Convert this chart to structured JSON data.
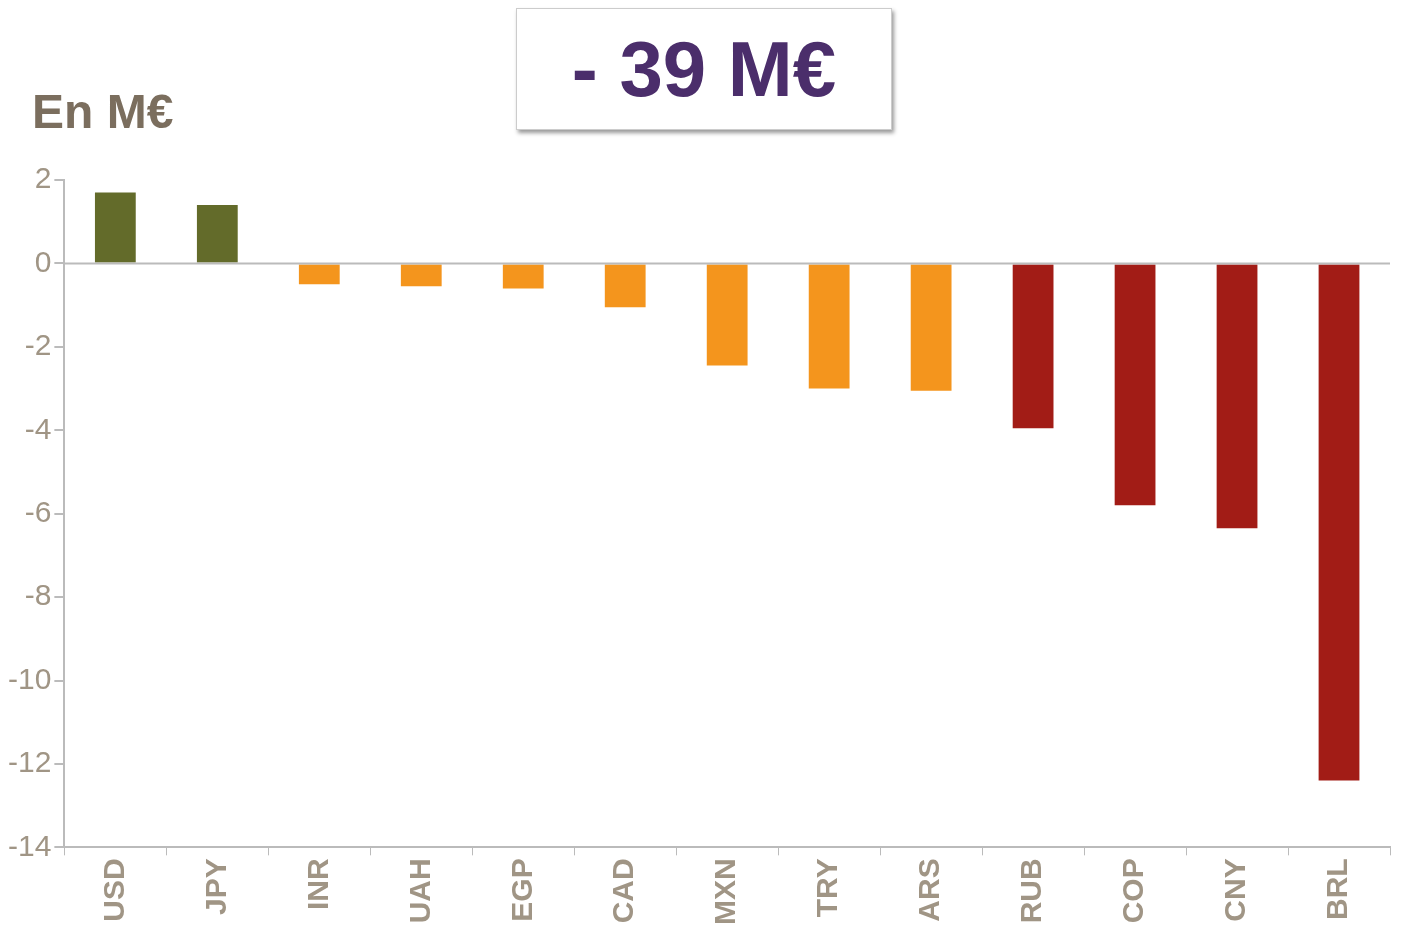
{
  "chart_data": {
    "type": "bar",
    "title": "- 39 M€",
    "ylabel": "En M€",
    "categories": [
      "USD",
      "JPY",
      "INR",
      "UAH",
      "EGP",
      "CAD",
      "MXN",
      "TRY",
      "ARS",
      "RUB",
      "COP",
      "CNY",
      "BRL"
    ],
    "values": [
      1.7,
      1.4,
      -0.5,
      -0.55,
      -0.6,
      -1.05,
      -2.45,
      -3.0,
      -3.05,
      -3.95,
      -5.8,
      -6.35,
      -12.4
    ],
    "colors": [
      "#636b2a",
      "#636b2a",
      "#f4951d",
      "#f4951d",
      "#f4951d",
      "#f4951d",
      "#f4951d",
      "#f4951d",
      "#f4951d",
      "#a21c16",
      "#a21c16",
      "#a21c16",
      "#a21c16"
    ],
    "ylim": [
      -14,
      2
    ],
    "yticks": [
      -14,
      -12,
      -10,
      -8,
      -6,
      -4,
      -2,
      0,
      2
    ],
    "grid": false,
    "legend": false,
    "ref_lines": [
      {
        "axis": "y",
        "value": 0,
        "color": "#bbbbbb"
      }
    ]
  }
}
